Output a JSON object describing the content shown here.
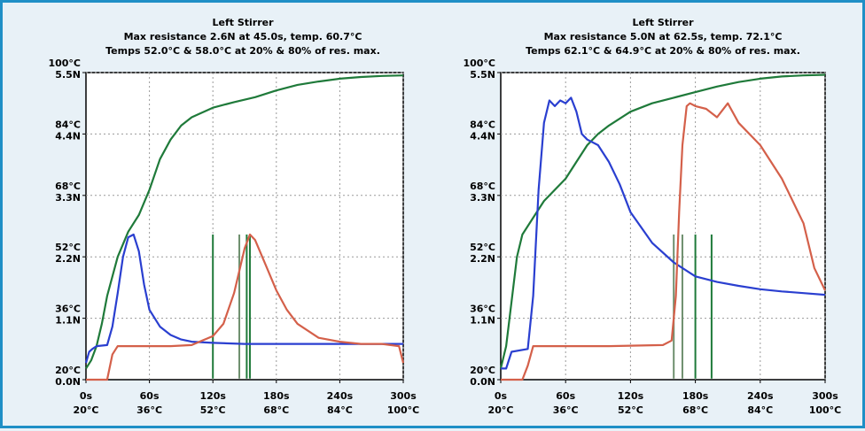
{
  "chart_data": [
    {
      "type": "line",
      "title": "Left Stirrer",
      "subtitle_1": "Max resistance 2.6N at 45.0s, temp. 60.7°C",
      "subtitle_2": "Temps 52.0°C & 58.0°C at 20% & 80% of res. max.",
      "y_left_ticks_temp": [
        "100°C",
        "84°C",
        "68°C",
        "52°C",
        "36°C",
        "20°C"
      ],
      "y_left_ticks_force": [
        "5.5N",
        "4.4N",
        "3.3N",
        "2.2N",
        "1.1N",
        "0.0N"
      ],
      "x_ticks_time": [
        "0s",
        "60s",
        "120s",
        "180s",
        "240s",
        "300s"
      ],
      "x_ticks_temp": [
        "20°C",
        "36°C",
        "52°C",
        "68°C",
        "84°C",
        "100°C"
      ],
      "xlim": [
        0,
        300
      ],
      "ylim": [
        0,
        5.5
      ],
      "grid": true,
      "colors": {
        "temperature": "#1f7a3a",
        "blue": "#2a3fd0",
        "red": "#d4604a",
        "green_markers": "#1f7a3a",
        "gray_markers": "#6e8f6e"
      },
      "series": [
        {
          "key": "temperature",
          "x": [
            0,
            5,
            10,
            15,
            20,
            30,
            40,
            50,
            60,
            70,
            80,
            90,
            100,
            120,
            140,
            160,
            180,
            200,
            220,
            240,
            260,
            280,
            300
          ],
          "values": [
            0.2,
            0.35,
            0.6,
            1.0,
            1.5,
            2.2,
            2.65,
            2.95,
            3.4,
            3.95,
            4.3,
            4.55,
            4.7,
            4.87,
            4.97,
            5.06,
            5.18,
            5.28,
            5.34,
            5.39,
            5.42,
            5.44,
            5.45
          ]
        },
        {
          "key": "blue",
          "x": [
            0,
            3,
            6,
            10,
            20,
            25,
            30,
            35,
            40,
            45,
            50,
            55,
            60,
            70,
            80,
            90,
            100,
            120,
            150,
            200,
            250,
            300
          ],
          "values": [
            0.3,
            0.5,
            0.55,
            0.6,
            0.62,
            0.95,
            1.55,
            2.2,
            2.55,
            2.6,
            2.3,
            1.7,
            1.25,
            0.95,
            0.8,
            0.72,
            0.68,
            0.66,
            0.64,
            0.64,
            0.64,
            0.64
          ]
        },
        {
          "key": "red",
          "x": [
            0,
            20,
            25,
            30,
            40,
            60,
            80,
            100,
            110,
            120,
            130,
            140,
            150,
            155,
            160,
            170,
            180,
            190,
            200,
            220,
            240,
            250,
            260,
            280,
            296,
            300
          ],
          "values": [
            0.0,
            0.0,
            0.45,
            0.6,
            0.6,
            0.6,
            0.6,
            0.62,
            0.7,
            0.78,
            1.0,
            1.55,
            2.35,
            2.6,
            2.5,
            2.05,
            1.6,
            1.25,
            1.0,
            0.75,
            0.68,
            0.66,
            0.64,
            0.64,
            0.6,
            0.3
          ]
        }
      ],
      "markers": [
        {
          "x": 120,
          "color": "green_markers"
        },
        {
          "x": 145,
          "color": "gray_markers"
        },
        {
          "x": 152,
          "color": "green_markers"
        },
        {
          "x": 155,
          "color": "green_markers"
        }
      ]
    },
    {
      "type": "line",
      "title": "Left Stirrer",
      "subtitle_1": "Max resistance 5.0N at 62.5s, temp. 72.1°C",
      "subtitle_2": "Temps 62.1°C & 64.9°C at 20% & 80% of res. max.",
      "y_left_ticks_temp": [
        "100°C",
        "84°C",
        "68°C",
        "52°C",
        "36°C",
        "20°C"
      ],
      "y_left_ticks_force": [
        "5.5N",
        "4.4N",
        "3.3N",
        "2.2N",
        "1.1N",
        "0.0N"
      ],
      "x_ticks_time": [
        "0s",
        "60s",
        "120s",
        "180s",
        "240s",
        "300s"
      ],
      "x_ticks_temp": [
        "20°C",
        "36°C",
        "52°C",
        "68°C",
        "84°C",
        "100°C"
      ],
      "xlim": [
        0,
        300
      ],
      "ylim": [
        0,
        5.5
      ],
      "grid": true,
      "colors": {
        "temperature": "#1f7a3a",
        "blue": "#2a3fd0",
        "red": "#d4604a",
        "green_markers": "#1f7a3a",
        "gray_markers": "#6e8f6e"
      },
      "series": [
        {
          "key": "temperature",
          "x": [
            0,
            5,
            10,
            15,
            20,
            30,
            40,
            50,
            60,
            70,
            80,
            90,
            100,
            120,
            140,
            160,
            180,
            200,
            220,
            240,
            260,
            280,
            300
          ],
          "values": [
            0.2,
            0.6,
            1.4,
            2.2,
            2.6,
            2.9,
            3.2,
            3.4,
            3.6,
            3.9,
            4.2,
            4.4,
            4.55,
            4.8,
            4.95,
            5.05,
            5.15,
            5.25,
            5.33,
            5.39,
            5.43,
            5.45,
            5.46
          ]
        },
        {
          "key": "blue",
          "x": [
            0,
            5,
            10,
            25,
            30,
            35,
            40,
            45,
            50,
            55,
            60,
            65,
            70,
            75,
            80,
            90,
            100,
            110,
            120,
            140,
            160,
            180,
            200,
            220,
            240,
            260,
            280,
            300
          ],
          "values": [
            0.2,
            0.2,
            0.5,
            0.55,
            1.5,
            3.4,
            4.6,
            5.0,
            4.9,
            5.0,
            4.95,
            5.05,
            4.8,
            4.4,
            4.3,
            4.2,
            3.9,
            3.5,
            3.0,
            2.45,
            2.1,
            1.85,
            1.75,
            1.68,
            1.62,
            1.58,
            1.55,
            1.52
          ]
        },
        {
          "key": "red",
          "x": [
            0,
            20,
            25,
            30,
            60,
            100,
            150,
            158,
            162,
            165,
            168,
            172,
            175,
            180,
            190,
            200,
            210,
            220,
            240,
            260,
            280,
            290,
            300
          ],
          "values": [
            0.0,
            0.0,
            0.25,
            0.6,
            0.6,
            0.6,
            0.62,
            0.7,
            1.5,
            3.0,
            4.2,
            4.9,
            4.95,
            4.9,
            4.85,
            4.7,
            4.95,
            4.6,
            4.2,
            3.6,
            2.8,
            2.0,
            1.6
          ]
        }
      ],
      "markers": [
        {
          "x": 160,
          "color": "gray_markers"
        },
        {
          "x": 168,
          "color": "gray_markers"
        },
        {
          "x": 180,
          "color": "green_markers"
        },
        {
          "x": 195,
          "color": "green_markers"
        }
      ]
    }
  ]
}
